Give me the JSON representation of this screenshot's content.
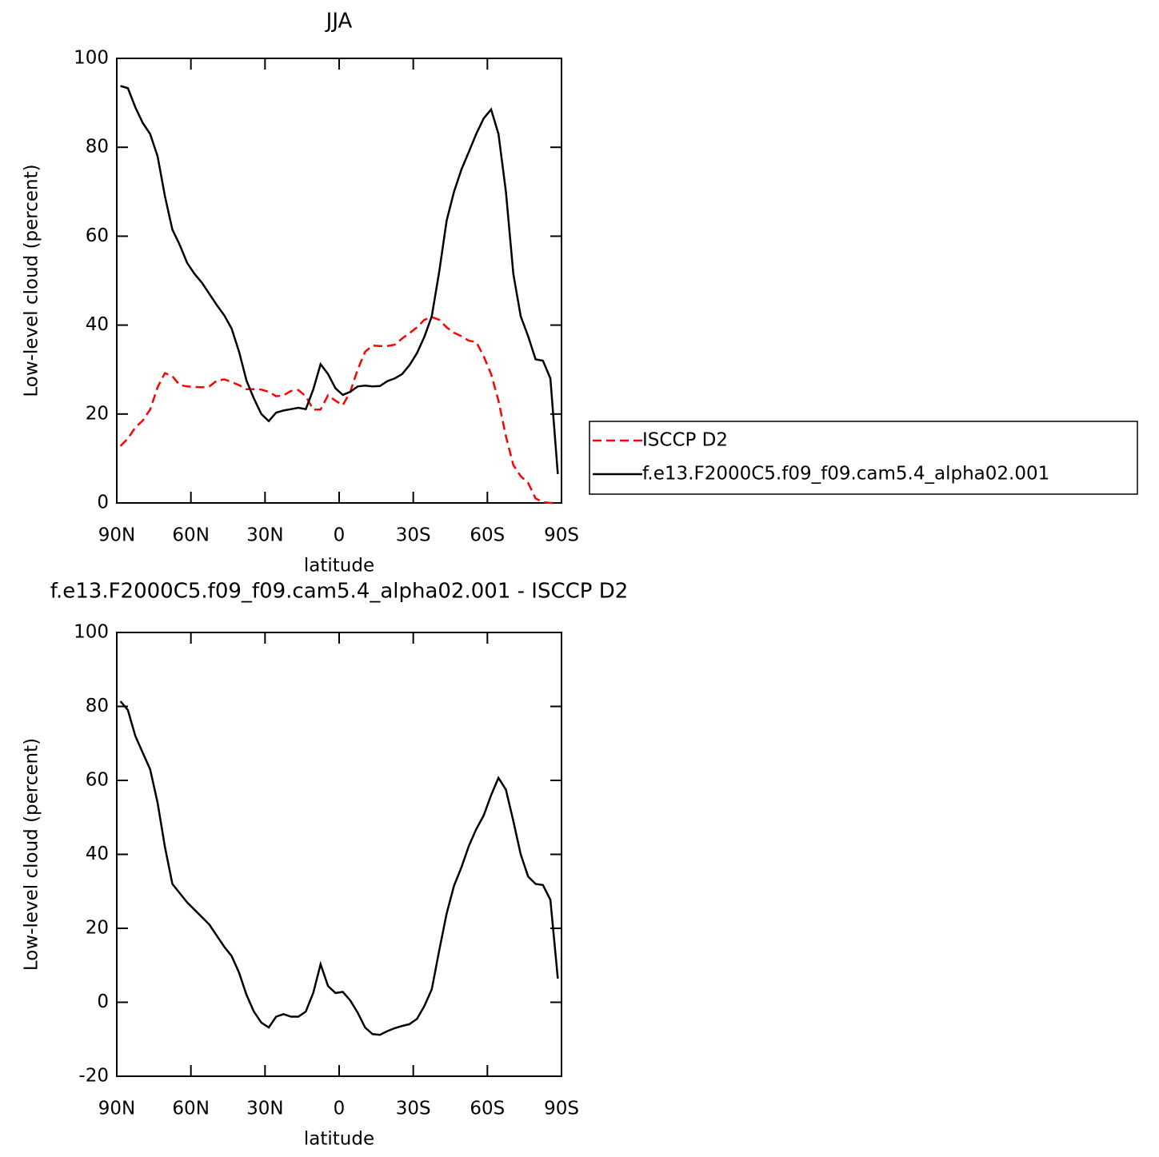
{
  "chart_data": [
    {
      "type": "line",
      "title": "JJA",
      "x_label": "latitude",
      "y_label": "Low-level cloud (percent)",
      "x": [
        88.5,
        85.5,
        82.5,
        79.5,
        76.5,
        73.5,
        70.5,
        67.5,
        64.5,
        61.5,
        58.5,
        55.5,
        52.5,
        49.5,
        46.5,
        43.5,
        40.5,
        37.5,
        34.5,
        31.5,
        28.5,
        25.5,
        22.5,
        19.5,
        16.5,
        13.5,
        10.5,
        7.5,
        4.5,
        1.5,
        -1.5,
        -4.5,
        -7.5,
        -10.5,
        -13.5,
        -16.5,
        -19.5,
        -22.5,
        -25.5,
        -28.5,
        -31.5,
        -34.5,
        -37.5,
        -40.5,
        -43.5,
        -46.5,
        -49.5,
        -52.5,
        -55.5,
        -58.5,
        -61.5,
        -64.5,
        -67.5,
        -70.5,
        -73.5,
        -76.5,
        -79.5,
        -82.5,
        -85.5,
        -88.5
      ],
      "series": [
        {
          "name": "ISCCP D2",
          "color": "#ff0000",
          "dashed": true,
          "values": [
            12.8,
            14.5,
            17,
            18.5,
            21,
            26,
            29.2,
            28.5,
            26.5,
            26.2,
            26.1,
            26,
            26.2,
            27.5,
            27.8,
            27.2,
            26.5,
            25.6,
            25.6,
            25.5,
            25,
            24,
            24.2,
            25.2,
            25.4,
            24,
            21,
            21,
            24.2,
            23,
            22,
            25,
            30,
            34,
            35.4,
            35.3,
            35.3,
            35.6,
            37,
            38.2,
            39.5,
            41.2,
            41.8,
            41.2,
            39.5,
            38.3,
            37.5,
            36.5,
            36.2,
            33,
            29,
            23,
            15,
            8.5,
            6,
            4.5,
            1,
            0.2,
            0,
            0
          ]
        },
        {
          "name": "f.e13.F2000C5.f09_f09.cam5.4_alpha02.001",
          "color": "#000000",
          "dashed": false,
          "values": [
            93.8,
            93.3,
            89,
            85.5,
            83,
            78,
            69,
            61.5,
            58,
            54,
            51.5,
            49.5,
            47,
            44.5,
            42.2,
            39.2,
            34,
            27.5,
            23.5,
            20,
            18.4,
            20.3,
            20.8,
            21.1,
            21.4,
            21.1,
            25.5,
            31.2,
            29,
            25.8,
            24.3,
            25,
            26.2,
            26.4,
            26.2,
            26.3,
            27.4,
            28,
            29,
            31,
            33.7,
            37.4,
            42,
            52,
            63.5,
            70,
            75,
            79,
            83,
            86.5,
            88.5,
            83,
            70,
            51.5,
            42,
            37.5,
            32.3,
            32,
            28,
            6.5
          ]
        }
      ],
      "xlim": [
        90,
        -90
      ],
      "xticks": [
        {
          "value": 90,
          "label": "90N"
        },
        {
          "value": 60,
          "label": "60N"
        },
        {
          "value": 30,
          "label": "30N"
        },
        0,
        {
          "value": -30,
          "label": "30S"
        },
        {
          "value": -60,
          "label": "60S"
        },
        {
          "value": -90,
          "label": "90S"
        }
      ],
      "ylim": [
        0,
        100
      ],
      "yticks": [
        0,
        20,
        40,
        60,
        80,
        100
      ],
      "legend": "right"
    },
    {
      "type": "line",
      "title": "f.e13.F2000C5.f09_f09.cam5.4_alpha02.001 - ISCCP D2",
      "x_label": "latitude",
      "y_label": "Low-level cloud (percent)",
      "x": [
        88.5,
        85.5,
        82.5,
        79.5,
        76.5,
        73.5,
        70.5,
        67.5,
        64.5,
        61.5,
        58.5,
        55.5,
        52.5,
        49.5,
        46.5,
        43.5,
        40.5,
        37.5,
        34.5,
        31.5,
        28.5,
        25.5,
        22.5,
        19.5,
        16.5,
        13.5,
        10.5,
        7.5,
        4.5,
        1.5,
        -1.5,
        -4.5,
        -7.5,
        -10.5,
        -13.5,
        -16.5,
        -19.5,
        -22.5,
        -25.5,
        -28.5,
        -31.5,
        -34.5,
        -37.5,
        -40.5,
        -43.5,
        -46.5,
        -49.5,
        -52.5,
        -55.5,
        -58.5,
        -61.5,
        -64.5,
        -67.5,
        -70.5,
        -73.5,
        -76.5,
        -79.5,
        -82.5,
        -85.5,
        -88.5
      ],
      "color": "#000000",
      "values": [
        81.4,
        79,
        72,
        67.5,
        63,
        54,
        42,
        32,
        29.5,
        27,
        25,
        23,
        21,
        18,
        15,
        12.5,
        8,
        2,
        -2.5,
        -5.5,
        -6.8,
        -3.9,
        -3.2,
        -3.9,
        -3.9,
        -2.5,
        2.5,
        10.3,
        4.4,
        2.5,
        2.8,
        0.5,
        -2.8,
        -6.8,
        -8.6,
        -8.8,
        -7.8,
        -7,
        -6.4,
        -5.9,
        -4.5,
        -1,
        3.5,
        14,
        24,
        31.5,
        36.5,
        42.3,
        46.8,
        50.5,
        56,
        60.7,
        57.5,
        49,
        40,
        34,
        32,
        31.7,
        27.7,
        6.4
      ],
      "xlim": [
        90,
        -90
      ],
      "xticks": [
        {
          "value": 90,
          "label": "90N"
        },
        {
          "value": 60,
          "label": "60N"
        },
        {
          "value": 30,
          "label": "30N"
        },
        0,
        {
          "value": -30,
          "label": "30S"
        },
        {
          "value": -60,
          "label": "60S"
        },
        {
          "value": -90,
          "label": "90S"
        }
      ],
      "ylim": [
        -20,
        100
      ],
      "yticks": [
        -20,
        0,
        20,
        40,
        60,
        80,
        100
      ]
    }
  ]
}
